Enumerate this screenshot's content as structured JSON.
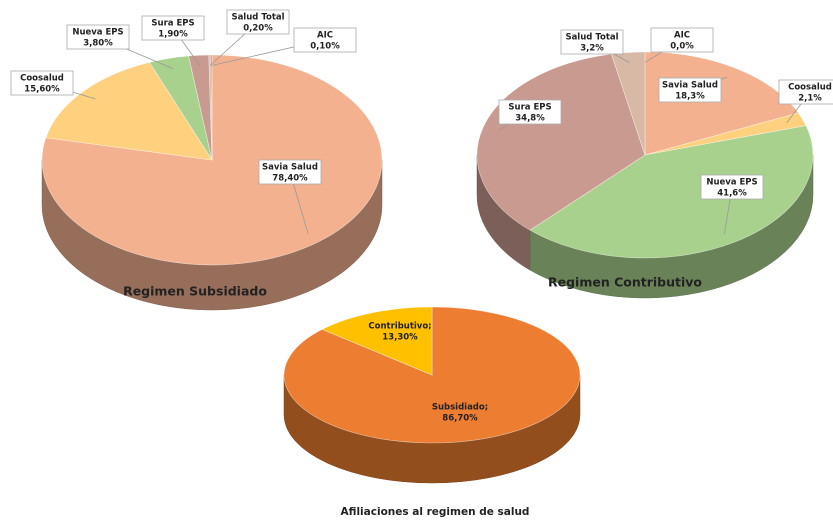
{
  "chart_data": [
    {
      "type": "pie",
      "title": "Regimen Subsidiado",
      "categories": [
        "Savia Salud",
        "Coosalud",
        "Nueva EPS",
        "Sura EPS",
        "Salud Total",
        "AIC"
      ],
      "values": [
        78.4,
        15.6,
        3.8,
        1.9,
        0.2,
        0.1
      ],
      "value_labels": [
        "78,40%",
        "15,60%",
        "3,80%",
        "1,90%",
        "0,20%",
        "0,10%"
      ],
      "colors": [
        "#f4b18f",
        "#ffd07e",
        "#a9d18e",
        "#c99a90",
        "#d8b9a6",
        "#e07070"
      ]
    },
    {
      "type": "pie",
      "title": "Regimen Contributivo",
      "categories": [
        "Savia Salud",
        "Coosalud",
        "Nueva EPS",
        "Sura EPS",
        "Salud Total",
        "AIC"
      ],
      "values": [
        18.3,
        2.1,
        41.6,
        34.8,
        3.2,
        0.0
      ],
      "value_labels": [
        "18,3%",
        "2,1%",
        "41,6%",
        "34,8%",
        "3,2%",
        "0,0%"
      ],
      "colors": [
        "#f4b18f",
        "#ffd07e",
        "#a9d18e",
        "#c99a90",
        "#d8b9a6",
        "#e07070"
      ]
    },
    {
      "type": "pie",
      "title": "Afiliaciones al regimen de salud",
      "categories": [
        "Subsidiado;",
        "Contributivo;"
      ],
      "values": [
        86.7,
        13.3
      ],
      "value_labels": [
        "86,70%",
        "13,30%"
      ],
      "colors": [
        "#ed7d31",
        "#ffc000"
      ]
    }
  ]
}
